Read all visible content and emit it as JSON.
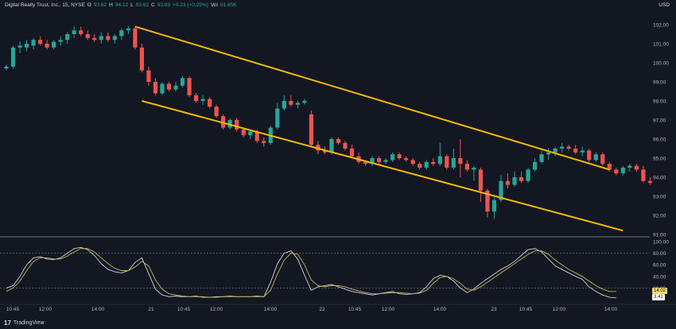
{
  "header": {
    "symbol": "Digital Realty Trust, Inc., 15, NYSE",
    "open_label": "O",
    "open": "93.62",
    "high_label": "H",
    "high": "94.12",
    "low_label": "L",
    "low": "93.62",
    "close_label": "C",
    "close": "93.83",
    "change": "+0.23 (+0.25%)",
    "volume_label": "Vol",
    "volume": "61.65K"
  },
  "currency": "USD",
  "brand": "TradingView",
  "colors": {
    "up": "#26a69a",
    "down": "#ef5350",
    "trendline": "#f5b800",
    "osc_k": "#d1d4dc",
    "osc_d": "#c9b458",
    "background": "#131722",
    "tag_k": "#f5d76e",
    "tag_d": "#ffffff"
  },
  "chart_data": [
    {
      "type": "candlestick",
      "title": "Digital Realty Trust, Inc., 15, NYSE",
      "ylim": [
        91.0,
        102.5
      ],
      "y_ticks": [
        91.0,
        92.0,
        93.0,
        94.0,
        95.0,
        96.0,
        97.0,
        98.0,
        99.0,
        100.0,
        101.0,
        102.0
      ],
      "x_tick_labels": [
        "10:45",
        "12:00",
        "14:00",
        "21",
        "10:45",
        "12:00",
        "14:00",
        "22",
        "10:45",
        "12:00",
        "14:00",
        "23",
        "10:45",
        "12:00",
        "14:00"
      ],
      "candles": [
        {
          "o": 99.7,
          "h": 99.9,
          "l": 99.6,
          "c": 99.8
        },
        {
          "o": 99.8,
          "h": 100.9,
          "l": 99.7,
          "c": 100.8
        },
        {
          "o": 100.8,
          "h": 101.1,
          "l": 100.5,
          "c": 100.9
        },
        {
          "o": 100.8,
          "h": 101.2,
          "l": 100.6,
          "c": 101.0
        },
        {
          "o": 100.9,
          "h": 101.3,
          "l": 100.7,
          "c": 101.2
        },
        {
          "o": 101.2,
          "h": 101.4,
          "l": 100.9,
          "c": 101.0
        },
        {
          "o": 101.0,
          "h": 101.2,
          "l": 100.7,
          "c": 100.8
        },
        {
          "o": 100.8,
          "h": 101.2,
          "l": 100.7,
          "c": 101.1
        },
        {
          "o": 101.1,
          "h": 101.4,
          "l": 100.9,
          "c": 101.2
        },
        {
          "o": 101.2,
          "h": 101.6,
          "l": 101.0,
          "c": 101.5
        },
        {
          "o": 101.5,
          "h": 101.9,
          "l": 101.3,
          "c": 101.7
        },
        {
          "o": 101.7,
          "h": 101.9,
          "l": 101.4,
          "c": 101.5
        },
        {
          "o": 101.5,
          "h": 101.7,
          "l": 101.2,
          "c": 101.3
        },
        {
          "o": 101.3,
          "h": 101.5,
          "l": 101.1,
          "c": 101.2
        },
        {
          "o": 101.2,
          "h": 101.6,
          "l": 101.0,
          "c": 101.4
        },
        {
          "o": 101.4,
          "h": 101.6,
          "l": 101.1,
          "c": 101.2
        },
        {
          "o": 101.2,
          "h": 101.5,
          "l": 101.0,
          "c": 101.4
        },
        {
          "o": 101.4,
          "h": 101.8,
          "l": 101.2,
          "c": 101.7
        },
        {
          "o": 101.7,
          "h": 101.9,
          "l": 101.5,
          "c": 101.8
        },
        {
          "o": 101.8,
          "h": 101.9,
          "l": 100.7,
          "c": 100.8
        },
        {
          "o": 100.8,
          "h": 101.0,
          "l": 99.5,
          "c": 99.6
        },
        {
          "o": 99.6,
          "h": 99.8,
          "l": 98.8,
          "c": 99.0
        },
        {
          "o": 99.0,
          "h": 99.2,
          "l": 98.3,
          "c": 98.4
        },
        {
          "o": 98.4,
          "h": 99.0,
          "l": 98.3,
          "c": 98.9
        },
        {
          "o": 98.9,
          "h": 99.0,
          "l": 98.5,
          "c": 98.6
        },
        {
          "o": 98.6,
          "h": 99.0,
          "l": 98.5,
          "c": 98.8
        },
        {
          "o": 98.8,
          "h": 99.3,
          "l": 98.7,
          "c": 99.2
        },
        {
          "o": 99.2,
          "h": 99.3,
          "l": 98.2,
          "c": 98.3
        },
        {
          "o": 98.3,
          "h": 98.4,
          "l": 97.9,
          "c": 98.0
        },
        {
          "o": 98.0,
          "h": 98.3,
          "l": 97.8,
          "c": 98.1
        },
        {
          "o": 98.1,
          "h": 98.2,
          "l": 97.6,
          "c": 97.7
        },
        {
          "o": 97.7,
          "h": 97.8,
          "l": 97.1,
          "c": 97.2
        },
        {
          "o": 97.2,
          "h": 97.3,
          "l": 96.5,
          "c": 96.6
        },
        {
          "o": 96.6,
          "h": 97.1,
          "l": 96.5,
          "c": 97.0
        },
        {
          "o": 97.0,
          "h": 97.1,
          "l": 96.4,
          "c": 96.5
        },
        {
          "o": 96.5,
          "h": 96.6,
          "l": 96.1,
          "c": 96.2
        },
        {
          "o": 96.2,
          "h": 96.5,
          "l": 96.0,
          "c": 96.4
        },
        {
          "o": 96.4,
          "h": 96.5,
          "l": 95.8,
          "c": 95.9
        },
        {
          "o": 95.9,
          "h": 96.1,
          "l": 95.6,
          "c": 95.8
        },
        {
          "o": 95.8,
          "h": 96.7,
          "l": 95.7,
          "c": 96.6
        },
        {
          "o": 96.6,
          "h": 97.9,
          "l": 96.5,
          "c": 97.6
        },
        {
          "o": 97.6,
          "h": 98.3,
          "l": 97.5,
          "c": 98.0
        },
        {
          "o": 98.0,
          "h": 98.3,
          "l": 97.7,
          "c": 97.8
        },
        {
          "o": 97.8,
          "h": 98.0,
          "l": 97.6,
          "c": 97.9
        },
        {
          "o": 97.9,
          "h": 98.1,
          "l": 97.8,
          "c": 98.0
        },
        {
          "o": 97.3,
          "h": 97.5,
          "l": 95.6,
          "c": 95.7
        },
        {
          "o": 95.7,
          "h": 95.9,
          "l": 95.2,
          "c": 95.4
        },
        {
          "o": 95.4,
          "h": 95.6,
          "l": 95.2,
          "c": 95.3
        },
        {
          "o": 95.3,
          "h": 96.1,
          "l": 95.2,
          "c": 96.0
        },
        {
          "o": 96.0,
          "h": 96.1,
          "l": 95.7,
          "c": 95.8
        },
        {
          "o": 95.8,
          "h": 95.9,
          "l": 95.4,
          "c": 95.5
        },
        {
          "o": 95.5,
          "h": 95.7,
          "l": 95.0,
          "c": 95.1
        },
        {
          "o": 95.1,
          "h": 95.3,
          "l": 94.7,
          "c": 94.8
        },
        {
          "o": 94.8,
          "h": 94.9,
          "l": 94.6,
          "c": 94.7
        },
        {
          "o": 94.7,
          "h": 95.1,
          "l": 94.6,
          "c": 95.0
        },
        {
          "o": 95.0,
          "h": 95.1,
          "l": 94.7,
          "c": 94.8
        },
        {
          "o": 94.8,
          "h": 95.0,
          "l": 94.7,
          "c": 94.9
        },
        {
          "o": 94.9,
          "h": 95.3,
          "l": 94.8,
          "c": 95.2
        },
        {
          "o": 95.2,
          "h": 95.3,
          "l": 94.9,
          "c": 95.0
        },
        {
          "o": 95.0,
          "h": 95.1,
          "l": 94.8,
          "c": 94.9
        },
        {
          "o": 94.9,
          "h": 95.0,
          "l": 94.6,
          "c": 94.7
        },
        {
          "o": 94.7,
          "h": 94.8,
          "l": 94.4,
          "c": 94.5
        },
        {
          "o": 94.5,
          "h": 94.9,
          "l": 94.4,
          "c": 94.8
        },
        {
          "o": 94.8,
          "h": 95.0,
          "l": 94.6,
          "c": 94.7
        },
        {
          "o": 94.7,
          "h": 95.8,
          "l": 94.6,
          "c": 95.1
        },
        {
          "o": 95.1,
          "h": 95.2,
          "l": 94.4,
          "c": 94.5
        },
        {
          "o": 94.5,
          "h": 95.5,
          "l": 94.4,
          "c": 95.0
        },
        {
          "o": 95.0,
          "h": 96.0,
          "l": 94.0,
          "c": 94.7
        },
        {
          "o": 94.7,
          "h": 94.9,
          "l": 94.3,
          "c": 94.4
        },
        {
          "o": 94.4,
          "h": 94.6,
          "l": 93.8,
          "c": 94.5
        },
        {
          "o": 94.4,
          "h": 94.5,
          "l": 92.7,
          "c": 93.3
        },
        {
          "o": 93.3,
          "h": 93.4,
          "l": 91.9,
          "c": 92.2
        },
        {
          "o": 92.2,
          "h": 93.0,
          "l": 91.8,
          "c": 92.8
        },
        {
          "o": 92.8,
          "h": 94.1,
          "l": 92.7,
          "c": 93.8
        },
        {
          "o": 93.8,
          "h": 94.2,
          "l": 93.4,
          "c": 93.6
        },
        {
          "o": 93.6,
          "h": 94.3,
          "l": 93.5,
          "c": 94.0
        },
        {
          "o": 94.0,
          "h": 94.3,
          "l": 93.7,
          "c": 93.8
        },
        {
          "o": 93.8,
          "h": 94.5,
          "l": 93.7,
          "c": 94.4
        },
        {
          "o": 94.4,
          "h": 95.0,
          "l": 94.3,
          "c": 94.8
        },
        {
          "o": 94.8,
          "h": 95.4,
          "l": 94.7,
          "c": 95.2
        },
        {
          "o": 95.2,
          "h": 95.5,
          "l": 94.9,
          "c": 95.3
        },
        {
          "o": 95.3,
          "h": 95.6,
          "l": 95.1,
          "c": 95.5
        },
        {
          "o": 95.5,
          "h": 95.8,
          "l": 95.3,
          "c": 95.6
        },
        {
          "o": 95.6,
          "h": 95.7,
          "l": 95.4,
          "c": 95.5
        },
        {
          "o": 95.5,
          "h": 95.7,
          "l": 95.2,
          "c": 95.3
        },
        {
          "o": 95.3,
          "h": 95.6,
          "l": 95.1,
          "c": 95.4
        },
        {
          "o": 95.4,
          "h": 95.5,
          "l": 94.8,
          "c": 94.9
        },
        {
          "o": 94.9,
          "h": 95.3,
          "l": 94.8,
          "c": 95.2
        },
        {
          "o": 95.2,
          "h": 95.3,
          "l": 94.6,
          "c": 94.7
        },
        {
          "o": 94.7,
          "h": 94.8,
          "l": 94.3,
          "c": 94.4
        },
        {
          "o": 94.4,
          "h": 94.5,
          "l": 94.1,
          "c": 94.2
        },
        {
          "o": 94.2,
          "h": 94.6,
          "l": 94.1,
          "c": 94.5
        },
        {
          "o": 94.5,
          "h": 94.7,
          "l": 94.3,
          "c": 94.6
        },
        {
          "o": 94.6,
          "h": 94.7,
          "l": 94.3,
          "c": 94.4
        },
        {
          "o": 94.4,
          "h": 94.6,
          "l": 93.7,
          "c": 93.8
        },
        {
          "o": 93.8,
          "h": 94.0,
          "l": 93.6,
          "c": 93.7
        }
      ],
      "trendlines": [
        {
          "from": {
            "candle": 19,
            "price": 101.9
          },
          "to": {
            "candle": 89,
            "price": 94.4
          }
        },
        {
          "from": {
            "candle": 20,
            "price": 98.0
          },
          "to": {
            "candle": 91,
            "price": 91.2
          }
        }
      ]
    },
    {
      "type": "line",
      "title": "",
      "ylim": [
        0,
        100
      ],
      "y_ticks": [
        20.0,
        40.0,
        60.0,
        80.0,
        100.0
      ],
      "reference_lines": [
        80,
        20
      ],
      "last_values": [
        "14.02",
        "3.41"
      ],
      "series": [
        {
          "values": [
            20,
            24,
            40,
            60,
            72,
            74,
            70,
            69,
            72,
            80,
            88,
            90,
            86,
            76,
            62,
            52,
            48,
            46,
            50,
            64,
            72,
            45,
            18,
            8,
            5,
            6,
            5,
            5,
            6,
            4,
            4,
            5,
            5,
            6,
            5,
            5,
            5,
            6,
            5,
            30,
            62,
            80,
            84,
            70,
            42,
            16,
            22,
            24,
            26,
            22,
            18,
            14,
            12,
            10,
            8,
            10,
            12,
            14,
            10,
            9,
            10,
            12,
            22,
            36,
            42,
            40,
            32,
            20,
            12,
            18,
            28,
            36,
            44,
            52,
            58,
            66,
            76,
            86,
            88,
            82,
            70,
            58,
            52,
            46,
            40,
            35,
            22,
            14,
            8,
            4,
            3
          ]
        },
        {
          "values": [
            14,
            20,
            32,
            50,
            66,
            72,
            72,
            70,
            70,
            75,
            82,
            88,
            88,
            82,
            72,
            62,
            54,
            50,
            50,
            56,
            66,
            58,
            34,
            18,
            10,
            8,
            6,
            5,
            5,
            5,
            4,
            4,
            5,
            5,
            5,
            5,
            5,
            5,
            5,
            16,
            44,
            68,
            80,
            78,
            60,
            34,
            24,
            22,
            24,
            24,
            22,
            18,
            15,
            12,
            10,
            10,
            11,
            12,
            12,
            11,
            10,
            11,
            16,
            28,
            38,
            40,
            36,
            28,
            18,
            16,
            22,
            30,
            38,
            46,
            54,
            62,
            70,
            78,
            84,
            84,
            78,
            68,
            60,
            52,
            46,
            40,
            32,
            24,
            18,
            14,
            14
          ]
        }
      ]
    }
  ]
}
